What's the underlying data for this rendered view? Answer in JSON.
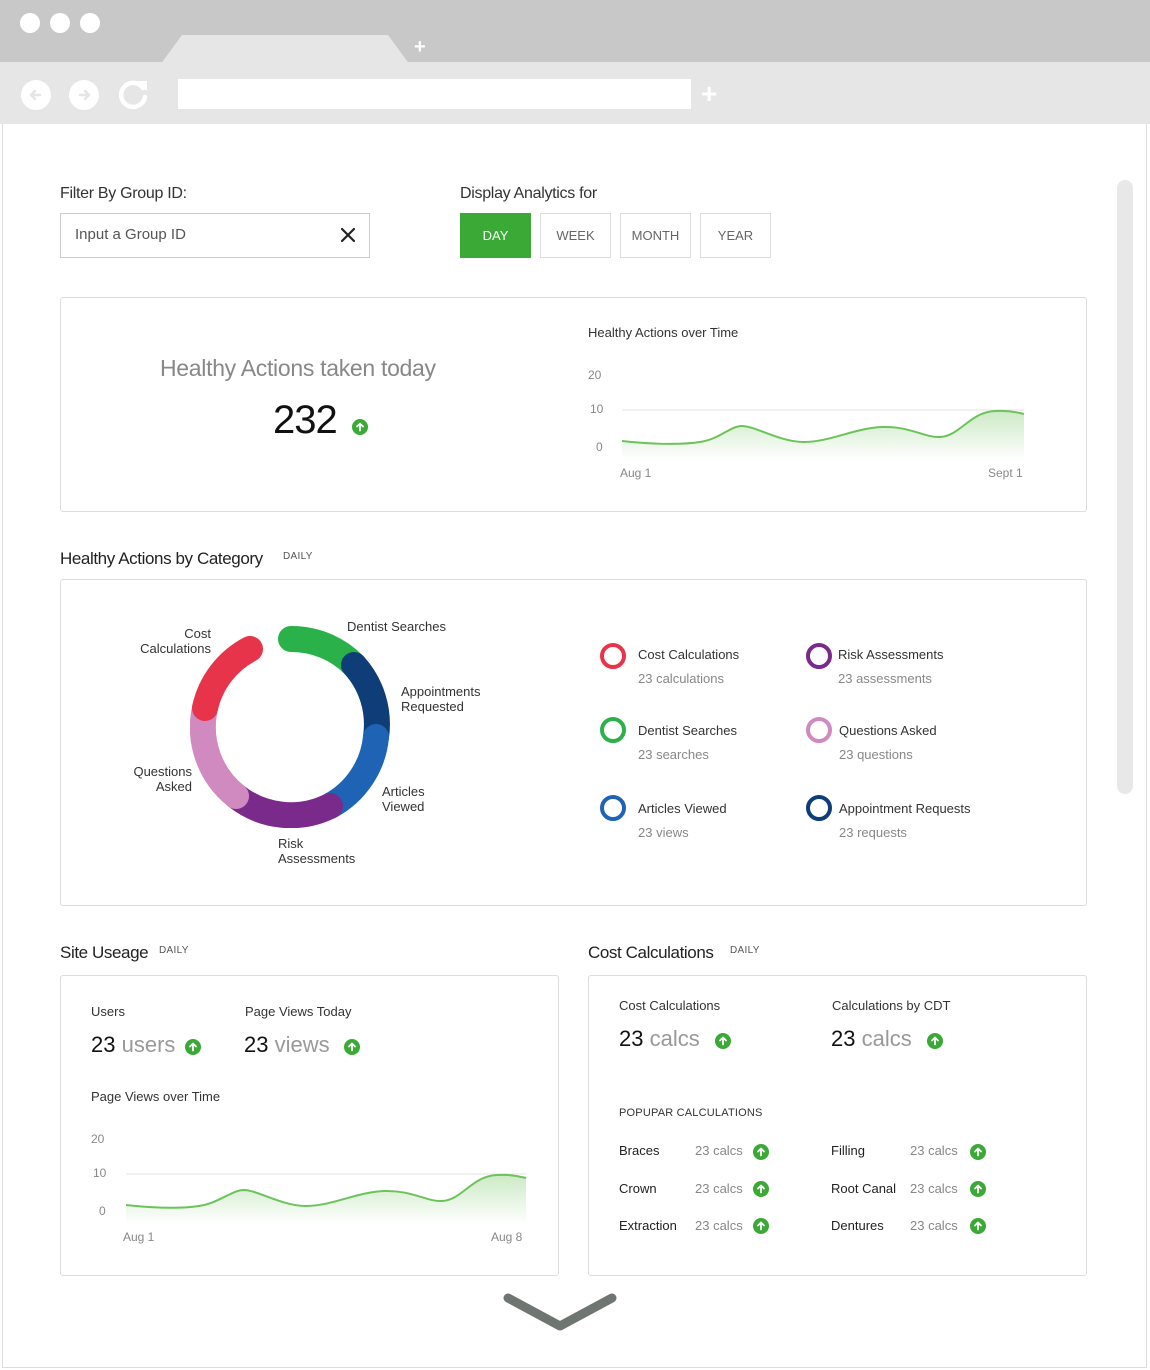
{
  "filter": {
    "label": "Filter By Group ID:",
    "placeholder": "Input a Group ID",
    "value": ""
  },
  "display": {
    "label": "Display Analytics for",
    "periods": [
      "DAY",
      "WEEK",
      "MONTH",
      "YEAR"
    ],
    "active": "DAY"
  },
  "healthy_today": {
    "title": "Healthy Actions taken today",
    "value": "232",
    "chart_title": "Healthy Actions over Time",
    "y_ticks": [
      "20",
      "10",
      "0"
    ],
    "x_start": "Aug 1",
    "x_end": "Sept 1"
  },
  "category": {
    "title": "Healthy Actions by Category",
    "tag": "DAILY",
    "donut_labels": {
      "cost": [
        "Cost",
        "Calculations"
      ],
      "dentist": [
        "Dentist Searches"
      ],
      "appointments": [
        "Appointments",
        "Requested"
      ],
      "articles": [
        "Articles",
        "Viewed"
      ],
      "risk": [
        "Risk",
        "Assessments"
      ],
      "questions": [
        "Questions",
        "Asked"
      ]
    },
    "legend": [
      {
        "name": "Cost Calculations",
        "sub": "23 calculations",
        "color": "#e8344a"
      },
      {
        "name": "Risk Assessments",
        "sub": "23 assessments",
        "color": "#7a2a8a"
      },
      {
        "name": "Dentist Searches",
        "sub": "23 searches",
        "color": "#2bb14a"
      },
      {
        "name": "Questions Asked",
        "sub": "23 questions",
        "color": "#d08abf"
      },
      {
        "name": "Articles Viewed",
        "sub": "23 views",
        "color": "#1f64b4"
      },
      {
        "name": "Appointment Requests",
        "sub": "23 requests",
        "color": "#0f3d78"
      }
    ]
  },
  "site_usage": {
    "title": "Site Useage",
    "tag": "DAILY",
    "users_label": "Users",
    "users_num": "23",
    "users_unit": "users",
    "views_label": "Page Views Today",
    "views_num": "23",
    "views_unit": "views",
    "chart_title": "Page Views over Time",
    "y_ticks": [
      "20",
      "10",
      "0"
    ],
    "x_start": "Aug 1",
    "x_end": "Aug 8"
  },
  "cost_calc": {
    "title": "Cost Calculations",
    "tag": "DAILY",
    "calc_label": "Cost Calculations",
    "calc_num": "23",
    "calc_unit": "calcs",
    "cdt_label": "Calculations by CDT",
    "cdt_num": "23",
    "cdt_unit": "calcs",
    "popular_header": "POPUPAR CALCULATIONS",
    "popular": [
      {
        "name": "Braces",
        "value": "23 calcs"
      },
      {
        "name": "Filling",
        "value": "23 calcs"
      },
      {
        "name": "Crown",
        "value": "23 calcs"
      },
      {
        "name": "Root Canal",
        "value": "23 calcs"
      },
      {
        "name": "Extraction",
        "value": "23 calcs"
      },
      {
        "name": "Dentures",
        "value": "23 calcs"
      }
    ]
  },
  "colors": {
    "accent_green": "#3aa935",
    "chart_line": "#6cc35a"
  }
}
